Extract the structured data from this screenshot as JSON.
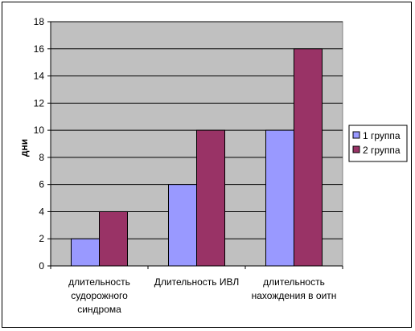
{
  "chart_data": {
    "type": "bar",
    "title": "",
    "xlabel": "",
    "ylabel": "дни",
    "ylim": [
      0,
      18
    ],
    "yticks": [
      0,
      2,
      4,
      6,
      8,
      10,
      12,
      14,
      16,
      18
    ],
    "grid": true,
    "legend_position": "right",
    "categories": [
      [
        "длительность",
        "судорожного",
        "синдрома"
      ],
      [
        "Длительность ИВЛ"
      ],
      [
        "длительность",
        "нахождения в оитн"
      ]
    ],
    "series": [
      {
        "name": "1 группа",
        "color": "#9999ff",
        "values": [
          2,
          6,
          10
        ]
      },
      {
        "name": "2 группа",
        "color": "#993366",
        "values": [
          4,
          10,
          16
        ]
      }
    ],
    "plot_background": "#c0c0c0"
  }
}
